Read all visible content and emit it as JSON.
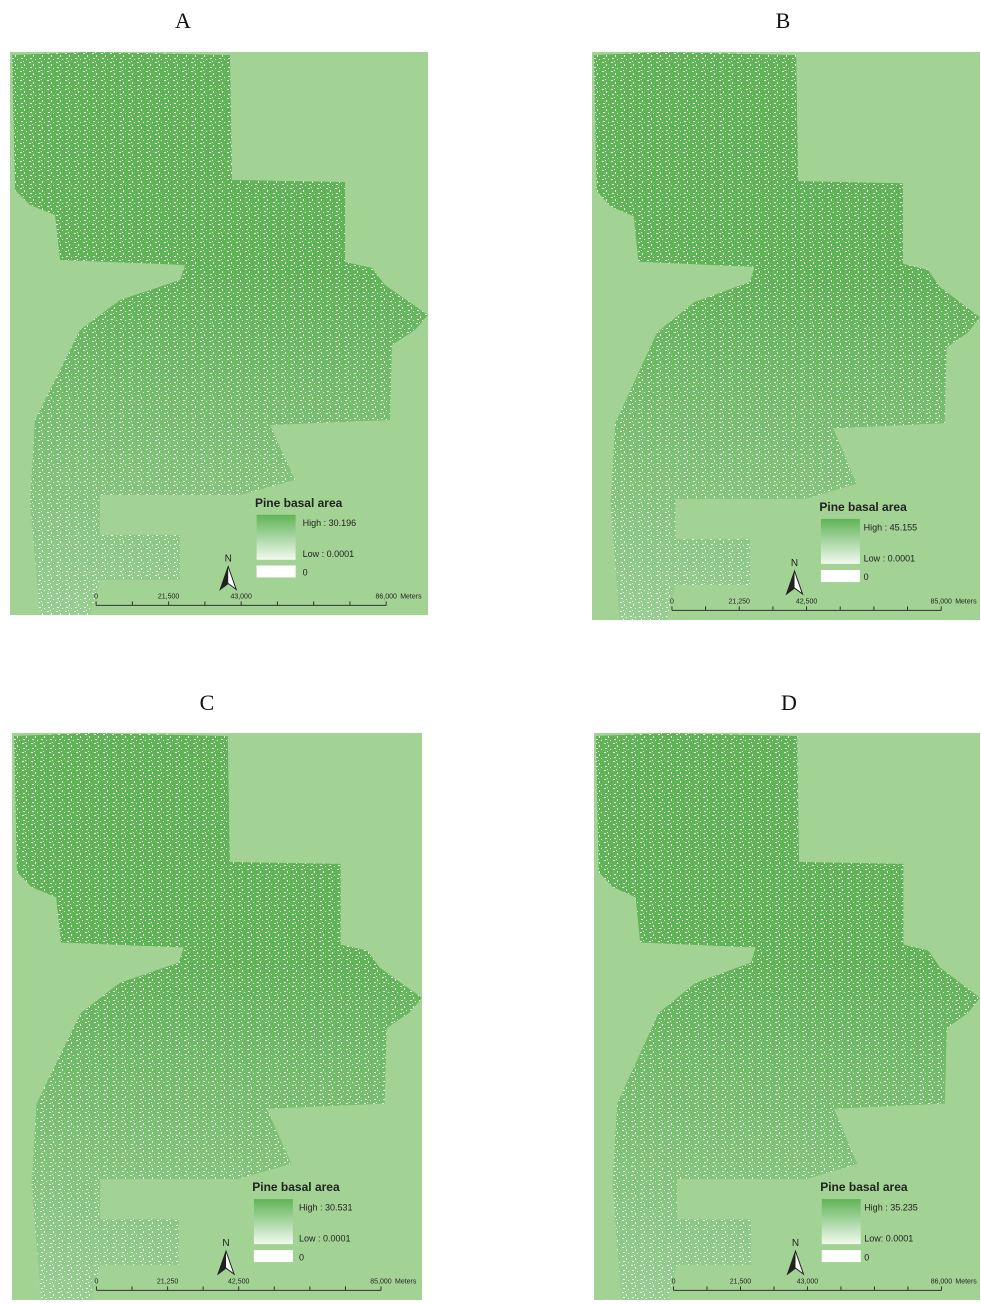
{
  "figure": {
    "panels": [
      {
        "label": "A",
        "legend": {
          "title": "Pine basal area",
          "high": "High : 30.196",
          "low": "Low : 0.0001",
          "zero": "0"
        },
        "north": "N",
        "scale": {
          "ticks": [
            "0",
            "21,500",
            "43,000",
            "86,000"
          ],
          "unit": "Meters"
        }
      },
      {
        "label": "B",
        "legend": {
          "title": "Pine basal area",
          "high": "High : 45.155",
          "low": "Low : 0.0001",
          "zero": "0"
        },
        "north": "N",
        "scale": {
          "ticks": [
            "0",
            "21,250",
            "42,500",
            "85,000"
          ],
          "unit": "Meters"
        }
      },
      {
        "label": "C",
        "legend": {
          "title": "Pine basal area",
          "high": "High : 30.531",
          "low": "Low : 0.0001",
          "zero": "0"
        },
        "north": "N",
        "scale": {
          "ticks": [
            "0",
            "21,250",
            "42,500",
            "85,000"
          ],
          "unit": "Meters"
        }
      },
      {
        "label": "D",
        "legend": {
          "title": "Pine basal area",
          "high": "High : 35.235",
          "low": "Low: 0.0001",
          "zero": "0"
        },
        "north": "N",
        "scale": {
          "ticks": [
            "0",
            "21,500",
            "43,000",
            "86,000"
          ],
          "unit": "Meters"
        }
      }
    ]
  }
}
